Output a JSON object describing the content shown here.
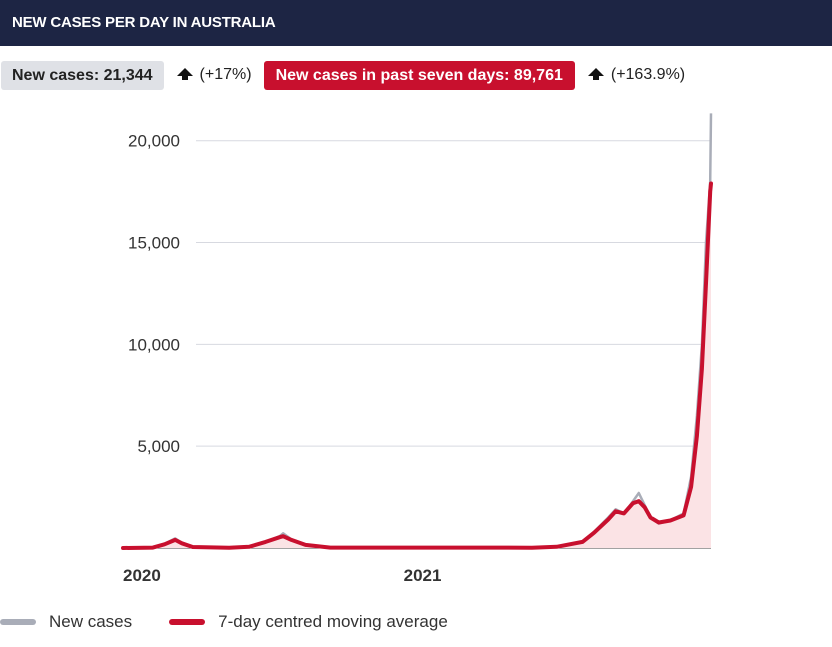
{
  "header": {
    "title": "NEW CASES PER DAY IN AUSTRALIA"
  },
  "stats": {
    "new_cases_label": "New cases: 21,344",
    "new_cases_change": "(+17%)",
    "seven_day_label": "New cases in past seven days: 89,761",
    "seven_day_change": "(+163.9%)",
    "arrow_icon": "arrow-up-icon"
  },
  "colors": {
    "header_bg": "#1d2544",
    "accent_red": "#c8102e",
    "raw_grey": "#a9adb8",
    "area_fill": "#fbe3e5",
    "grid": "#d7d9e0"
  },
  "legend": [
    {
      "label": "New cases",
      "color": "#a9adb8"
    },
    {
      "label": "7-day centred moving average",
      "color": "#c8102e"
    }
  ],
  "chart_data": {
    "type": "line",
    "x_tick_labels": [
      "2020",
      "2021"
    ],
    "y_ticks": [
      5000,
      10000,
      15000,
      20000
    ],
    "y_tick_labels": [
      "5,000",
      "10,000",
      "15,000",
      "20,000"
    ],
    "ylim": [
      0,
      22000
    ],
    "grid": true,
    "legend_position": "bottom-left",
    "series": [
      {
        "name": "New cases",
        "points": [
          [
            "2020-01-25",
            0
          ],
          [
            "2020-03-01",
            20
          ],
          [
            "2020-03-15",
            200
          ],
          [
            "2020-03-28",
            470
          ],
          [
            "2020-04-05",
            250
          ],
          [
            "2020-04-18",
            40
          ],
          [
            "2020-06-01",
            15
          ],
          [
            "2020-06-25",
            50
          ],
          [
            "2020-07-15",
            300
          ],
          [
            "2020-08-01",
            580
          ],
          [
            "2020-08-05",
            720
          ],
          [
            "2020-08-15",
            420
          ],
          [
            "2020-09-01",
            150
          ],
          [
            "2020-10-01",
            25
          ],
          [
            "2021-01-01",
            30
          ],
          [
            "2021-06-01",
            20
          ],
          [
            "2021-07-01",
            60
          ],
          [
            "2021-08-01",
            300
          ],
          [
            "2021-08-15",
            800
          ],
          [
            "2021-09-01",
            1500
          ],
          [
            "2021-09-10",
            1900
          ],
          [
            "2021-09-20",
            1700
          ],
          [
            "2021-10-01",
            2300
          ],
          [
            "2021-10-08",
            2700
          ],
          [
            "2021-10-15",
            2100
          ],
          [
            "2021-10-22",
            1500
          ],
          [
            "2021-11-01",
            1200
          ],
          [
            "2021-11-15",
            1350
          ],
          [
            "2021-12-01",
            1700
          ],
          [
            "2021-12-10",
            3500
          ],
          [
            "2021-12-17",
            6500
          ],
          [
            "2021-12-23",
            10000
          ],
          [
            "2021-12-28",
            15000
          ],
          [
            "2022-01-02",
            18000
          ],
          [
            "2022-01-03",
            21344
          ]
        ]
      },
      {
        "name": "7-day centred moving average",
        "points": [
          [
            "2020-01-25",
            0
          ],
          [
            "2020-03-01",
            20
          ],
          [
            "2020-03-15",
            180
          ],
          [
            "2020-03-28",
            400
          ],
          [
            "2020-04-05",
            230
          ],
          [
            "2020-04-18",
            50
          ],
          [
            "2020-06-01",
            15
          ],
          [
            "2020-06-25",
            60
          ],
          [
            "2020-07-15",
            300
          ],
          [
            "2020-08-01",
            530
          ],
          [
            "2020-08-05",
            580
          ],
          [
            "2020-08-15",
            400
          ],
          [
            "2020-09-01",
            150
          ],
          [
            "2020-10-01",
            20
          ],
          [
            "2021-01-01",
            20
          ],
          [
            "2021-06-01",
            15
          ],
          [
            "2021-07-01",
            60
          ],
          [
            "2021-08-01",
            300
          ],
          [
            "2021-08-15",
            750
          ],
          [
            "2021-09-01",
            1400
          ],
          [
            "2021-09-10",
            1800
          ],
          [
            "2021-09-20",
            1700
          ],
          [
            "2021-10-01",
            2200
          ],
          [
            "2021-10-08",
            2300
          ],
          [
            "2021-10-15",
            2000
          ],
          [
            "2021-10-22",
            1500
          ],
          [
            "2021-11-01",
            1250
          ],
          [
            "2021-11-15",
            1350
          ],
          [
            "2021-12-01",
            1600
          ],
          [
            "2021-12-10",
            3000
          ],
          [
            "2021-12-17",
            5500
          ],
          [
            "2021-12-23",
            8800
          ],
          [
            "2021-12-28",
            13000
          ],
          [
            "2022-01-02",
            17500
          ],
          [
            "2022-01-03",
            17900
          ]
        ]
      }
    ]
  }
}
